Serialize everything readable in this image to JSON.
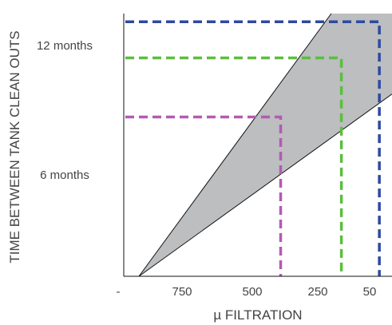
{
  "chart_data": {
    "type": "area",
    "xlabel": "µ FILTRATION",
    "ylabel": "TIME BETWEEN TANK CLEAN OUTS",
    "x_tick_labels": [
      "-",
      "750",
      "500",
      "250",
      "50"
    ],
    "x_ticks": [
      {
        "label": "-",
        "value": 1000
      },
      {
        "label": "750",
        "value": 750
      },
      {
        "label": "500",
        "value": 500
      },
      {
        "label": "250",
        "value": 250
      },
      {
        "label": "50",
        "value": 50
      }
    ],
    "x_reversed": true,
    "xlim": [
      1060,
      0
    ],
    "y_tick_labels": [
      "12 months",
      "6 months"
    ],
    "y_ticks": [
      {
        "label": "12 months",
        "value": 12
      },
      {
        "label": "6 months",
        "value": 6
      }
    ],
    "ylim": [
      0,
      16
    ],
    "grid": false,
    "shaded_region": {
      "color": "#bcbec0",
      "upper_boundary": [
        [
          1000,
          0
        ],
        [
          240,
          16
        ]
      ],
      "lower_boundary": [
        [
          1000,
          0
        ],
        [
          0,
          11.1
        ]
      ]
    },
    "series": [
      {
        "color": "#2e4aa0",
        "x": 50,
        "y": 15.5
      },
      {
        "color": "#5abf3e",
        "x": 200,
        "y": 13.3
      },
      {
        "color": "#b45ab4",
        "x": 440,
        "y": 9.7
      }
    ]
  }
}
